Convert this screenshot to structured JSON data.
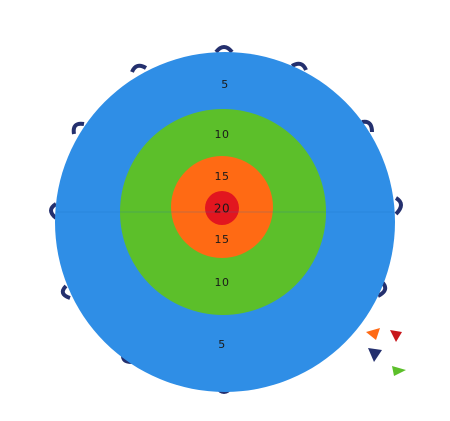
{
  "target": {
    "labels": [
      "5",
      "10",
      "15",
      "20",
      "15",
      "10",
      "5"
    ]
  }
}
